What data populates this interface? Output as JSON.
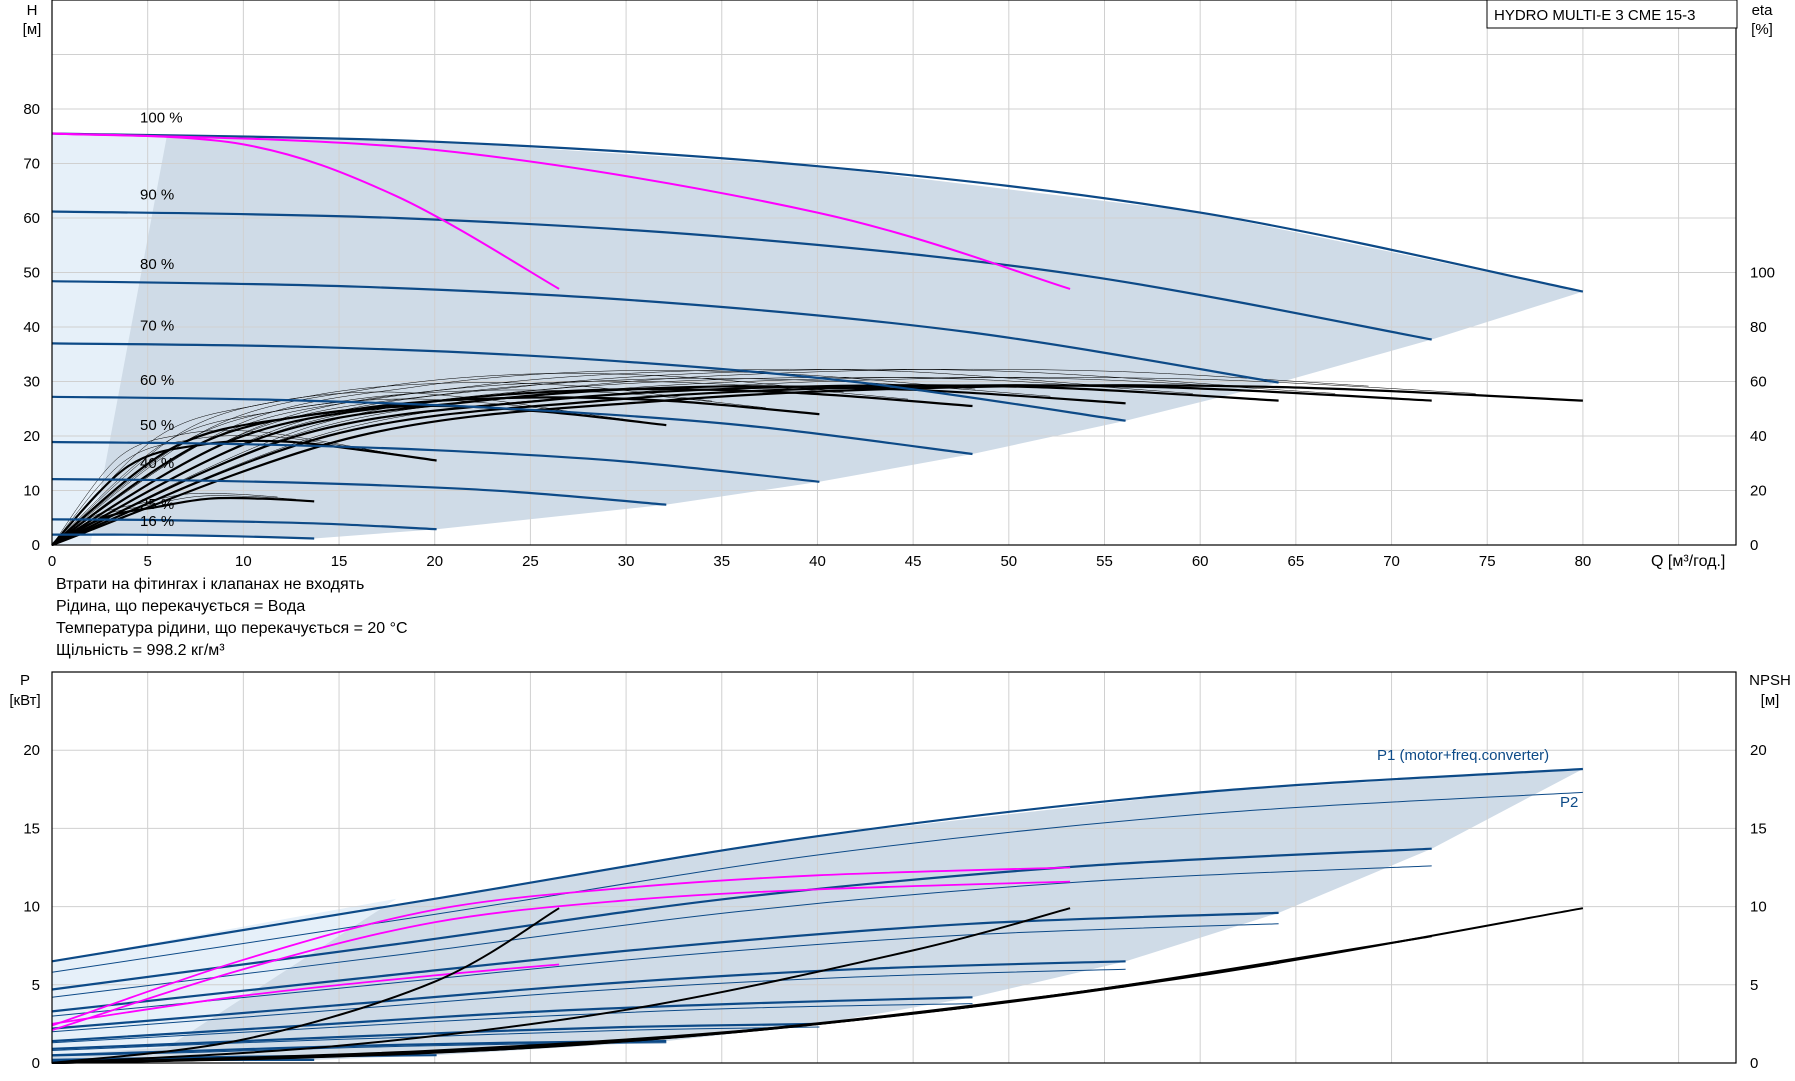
{
  "product_label": "HYDRO MULTI-E 3 CME 15-3",
  "notes": [
    "Втрати на фітингах і клапанах не входять",
    "Рідина, що перекачується = Вода",
    "Температура рідини, що перекачується = 20 °C",
    "Щільність = 998.2 кг/м³"
  ],
  "colors": {
    "operating_area": "#cfdbe7",
    "light_area": "#e6f0f9",
    "head_curves": "#0d4a87",
    "system_curve": "#ff00ff",
    "efficiency_curves": "#000000",
    "grid": "#d0d0d0"
  },
  "chart_data": [
    {
      "type": "line",
      "title": "",
      "xlabel": "Q [м³/год.]",
      "x_ticks": [
        "0",
        "5",
        "10",
        "15",
        "20",
        "25",
        "30",
        "35",
        "40",
        "45",
        "50",
        "55",
        "60",
        "65",
        "70",
        "75",
        "80"
      ],
      "xlim": [
        0,
        88
      ],
      "ylabel_left": "H",
      "ylabel_left_unit": "[м]",
      "ylim_left": [
        0,
        100
      ],
      "y_ticks_left": [
        "0",
        "10",
        "20",
        "30",
        "40",
        "50",
        "60",
        "70",
        "80"
      ],
      "ylabel_right": "eta",
      "ylabel_right_unit": "[%]",
      "ylim_right": [
        0,
        200
      ],
      "y_ticks_right": [
        "0",
        "20",
        "40",
        "60",
        "80",
        "100"
      ],
      "grid": true,
      "speed_labels": [
        {
          "text": "100 %",
          "x": 4.6,
          "y": 77.5
        },
        {
          "text": "90 %",
          "x": 4.6,
          "y": 63.4
        },
        {
          "text": "80 %",
          "x": 4.6,
          "y": 50.6
        },
        {
          "text": "70 %",
          "x": 4.6,
          "y": 39.4
        },
        {
          "text": "60 %",
          "x": 4.6,
          "y": 29.4
        },
        {
          "text": "50 %",
          "x": 4.6,
          "y": 21.1
        },
        {
          "text": "40 %",
          "x": 4.6,
          "y": 14.1
        },
        {
          "text": "25 %",
          "x": 4.6,
          "y": 6.6
        },
        {
          "text": "16 %",
          "x": 4.6,
          "y": 3.5
        }
      ],
      "series": [
        {
          "speed": "100 %",
          "role": "head",
          "x": [
            0,
            20,
            40,
            60,
            80
          ],
          "y": [
            75.5,
            74,
            69.5,
            61,
            46.5
          ]
        },
        {
          "speed": "90 %",
          "role": "head",
          "x": [
            0,
            18,
            36,
            54,
            72.1
          ],
          "y": [
            61.2,
            60,
            56.3,
            49.4,
            37.7
          ]
        },
        {
          "speed": "80 %",
          "role": "head",
          "x": [
            0,
            16,
            32,
            48,
            64.1
          ],
          "y": [
            48.4,
            47.4,
            44.5,
            39,
            29.8
          ]
        },
        {
          "speed": "70 %",
          "role": "head",
          "x": [
            0,
            14,
            28,
            42,
            56.1
          ],
          "y": [
            37,
            36.3,
            34.1,
            29.9,
            22.8
          ]
        },
        {
          "speed": "60 %",
          "role": "head",
          "x": [
            0,
            12,
            24,
            36,
            48.1
          ],
          "y": [
            27.2,
            26.6,
            25,
            22,
            16.7
          ]
        },
        {
          "speed": "50 %",
          "role": "head",
          "x": [
            0,
            10,
            20,
            30,
            40.1
          ],
          "y": [
            18.9,
            18.5,
            17.4,
            15.3,
            11.6
          ]
        },
        {
          "speed": "40 %",
          "role": "head",
          "x": [
            0,
            8,
            16,
            24,
            32.1
          ],
          "y": [
            12.1,
            11.8,
            11.1,
            9.8,
            7.4
          ]
        },
        {
          "speed": "25 %",
          "role": "head",
          "x": [
            0,
            5,
            10,
            15,
            20.1
          ],
          "y": [
            4.7,
            4.6,
            4.3,
            3.8,
            2.9
          ]
        },
        {
          "speed": "16 %",
          "role": "head",
          "x": [
            0,
            3.2,
            6.4,
            9.6,
            13.7
          ],
          "y": [
            1.9,
            1.9,
            1.8,
            1.6,
            1.2
          ]
        },
        {
          "speed": "100 %",
          "role": "eta",
          "x": [
            0,
            16,
            32,
            48,
            64,
            80
          ],
          "y": [
            0,
            40,
            53,
            58,
            58,
            53
          ]
        },
        {
          "speed": "90 %",
          "role": "eta",
          "x": [
            0,
            14.4,
            28.8,
            43.2,
            57.6,
            72.1
          ],
          "y": [
            0,
            40,
            53,
            58,
            58,
            53
          ]
        },
        {
          "speed": "80 %",
          "role": "eta",
          "x": [
            0,
            12.8,
            25.6,
            38.4,
            51.2,
            64.1
          ],
          "y": [
            0,
            40,
            53,
            58,
            58,
            53
          ]
        },
        {
          "speed": "70 %",
          "role": "eta",
          "x": [
            0,
            11.2,
            22.4,
            33.6,
            44.8,
            56.1
          ],
          "y": [
            0,
            40,
            53,
            58,
            57,
            52
          ]
        },
        {
          "speed": "60 %",
          "role": "eta",
          "x": [
            0,
            9.6,
            19.2,
            28.8,
            38.4,
            48.1
          ],
          "y": [
            0,
            39,
            52,
            57,
            56,
            51
          ]
        },
        {
          "speed": "50 %",
          "role": "eta",
          "x": [
            0,
            8,
            16,
            24,
            32,
            40.1
          ],
          "y": [
            0,
            38,
            50,
            54,
            53,
            48
          ]
        },
        {
          "speed": "40 %",
          "role": "eta",
          "x": [
            0,
            6.4,
            12.8,
            19.2,
            25.6,
            32.1
          ],
          "y": [
            0,
            36,
            47,
            51,
            49,
            44
          ]
        },
        {
          "speed": "25 %",
          "role": "eta",
          "x": [
            0,
            4,
            8,
            12,
            16,
            20.1
          ],
          "y": [
            0,
            29,
            37,
            38,
            35,
            31
          ]
        },
        {
          "speed": "16 %",
          "role": "eta",
          "x": [
            0,
            2.7,
            5.5,
            8.2,
            11,
            13.7
          ],
          "y": [
            0,
            10,
            14,
            17,
            17,
            16
          ]
        },
        {
          "role": "system",
          "x": [
            0,
            10,
            18,
            26.5
          ],
          "y": [
            75.5,
            73.5,
            64,
            47
          ]
        },
        {
          "role": "system",
          "x": [
            0,
            20,
            40,
            53.2
          ],
          "y": [
            75.5,
            72.5,
            61,
            47
          ]
        }
      ]
    },
    {
      "type": "line",
      "title": "",
      "xlim": [
        0,
        88
      ],
      "ylabel_left": "P",
      "ylabel_left_unit": "[кВт]",
      "ylim_left": [
        0,
        25
      ],
      "y_ticks_left": [
        "0",
        "5",
        "10",
        "15",
        "20"
      ],
      "ylabel_right": "NPSH",
      "ylabel_right_unit": "[м]",
      "ylim_right": [
        0,
        25
      ],
      "y_ticks_right": [
        "0",
        "5",
        "10",
        "15",
        "20"
      ],
      "grid": true,
      "series": [
        {
          "name": "P1 (motor+freq.converter)",
          "role": "p1",
          "x": [
            0,
            20,
            40,
            60,
            80
          ],
          "y": [
            6.5,
            10.5,
            14.5,
            17.3,
            18.8
          ]
        },
        {
          "name": "P2",
          "role": "p2",
          "x": [
            0,
            20,
            40,
            60,
            80
          ],
          "y": [
            5.8,
            9.5,
            13.3,
            15.9,
            17.3
          ]
        },
        {
          "role": "p1",
          "x": [
            0,
            18,
            36,
            54,
            72.1
          ],
          "y": [
            4.7,
            7.6,
            10.6,
            12.6,
            13.7
          ]
        },
        {
          "role": "p2",
          "x": [
            0,
            18,
            36,
            54,
            72.1
          ],
          "y": [
            4.2,
            6.9,
            9.7,
            11.6,
            12.6
          ]
        },
        {
          "role": "p1",
          "x": [
            0,
            16,
            32,
            48,
            64.1
          ],
          "y": [
            3.3,
            5.4,
            7.4,
            8.9,
            9.6
          ]
        },
        {
          "role": "p2",
          "x": [
            0,
            16,
            32,
            48,
            64.1
          ],
          "y": [
            3,
            4.9,
            6.8,
            8.2,
            8.9
          ]
        },
        {
          "role": "p1",
          "x": [
            0,
            14,
            28,
            42,
            56.1
          ],
          "y": [
            2.2,
            3.6,
            5,
            6,
            6.5
          ]
        },
        {
          "role": "p2",
          "x": [
            0,
            14,
            28,
            42,
            56.1
          ],
          "y": [
            2,
            3.3,
            4.6,
            5.5,
            6
          ]
        },
        {
          "role": "p1",
          "x": [
            0,
            12,
            24,
            36,
            48.1
          ],
          "y": [
            1.4,
            2.3,
            3.2,
            3.8,
            4.2
          ]
        },
        {
          "role": "p2",
          "x": [
            0,
            12,
            24,
            36,
            48.1
          ],
          "y": [
            1.3,
            2.1,
            2.9,
            3.5,
            3.8
          ]
        },
        {
          "role": "p1",
          "x": [
            0,
            10,
            20,
            30,
            40.1
          ],
          "y": [
            0.9,
            1.4,
            1.9,
            2.3,
            2.5
          ]
        },
        {
          "role": "p2",
          "x": [
            0,
            10,
            20,
            30,
            40.1
          ],
          "y": [
            0.8,
            1.3,
            1.7,
            2.1,
            2.3
          ]
        },
        {
          "role": "p1",
          "x": [
            0,
            8,
            16,
            24,
            32.1
          ],
          "y": [
            0.5,
            0.8,
            1.1,
            1.3,
            1.4
          ]
        },
        {
          "role": "p2",
          "x": [
            0,
            8,
            16,
            24,
            32.1
          ],
          "y": [
            0.45,
            0.7,
            1,
            1.2,
            1.3
          ]
        },
        {
          "role": "p1",
          "x": [
            0,
            5,
            10,
            15,
            20.1
          ],
          "y": [
            0.2,
            0.3,
            0.4,
            0.45,
            0.5
          ]
        },
        {
          "role": "p1",
          "x": [
            0,
            3.2,
            6.4,
            9.6,
            13.7
          ],
          "y": [
            0.1,
            0.15,
            0.2,
            0.2,
            0.2
          ]
        },
        {
          "role": "system",
          "x": [
            0,
            10,
            20,
            26.5
          ],
          "y": [
            2.5,
            4.3,
            5.6,
            6.3
          ]
        },
        {
          "role": "system",
          "x": [
            0,
            10,
            20,
            30,
            40,
            53.2
          ],
          "y": [
            2.4,
            6.6,
            9.8,
            11.2,
            12,
            12.5
          ]
        },
        {
          "role": "system",
          "x": [
            0,
            10,
            20,
            30,
            40,
            53.2
          ],
          "y": [
            2.1,
            6,
            9,
            10.4,
            11.1,
            11.6
          ]
        },
        {
          "role": "npsh",
          "x": [
            0,
            10,
            20,
            26.5
          ],
          "y": [
            0,
            1.5,
            5.2,
            9.9
          ]
        },
        {
          "role": "npsh",
          "x": [
            0,
            15,
            30,
            45,
            53.2
          ],
          "y": [
            0,
            1.1,
            3.4,
            7.2,
            9.9
          ]
        },
        {
          "role": "npsh",
          "x": [
            0,
            20,
            40,
            60,
            80
          ],
          "y": [
            0,
            0.8,
            2.5,
            5.6,
            9.9
          ]
        },
        {
          "role": "npsh",
          "x": [
            0,
            18,
            36,
            54,
            72.1
          ],
          "y": [
            0,
            0.6,
            2,
            4.6,
            8.1
          ]
        },
        {
          "role": "npsh",
          "x": [
            0,
            16,
            32,
            48,
            64.1
          ],
          "y": [
            0,
            0.5,
            1.6,
            3.6,
            6.4
          ]
        },
        {
          "role": "npsh",
          "x": [
            0,
            14,
            28,
            42,
            56.1
          ],
          "y": [
            0,
            0.4,
            1.2,
            2.8,
            4.9
          ]
        },
        {
          "role": "npsh",
          "x": [
            0,
            12,
            24,
            36,
            48.1
          ],
          "y": [
            0,
            0.3,
            0.9,
            2,
            3.6
          ]
        }
      ]
    }
  ]
}
